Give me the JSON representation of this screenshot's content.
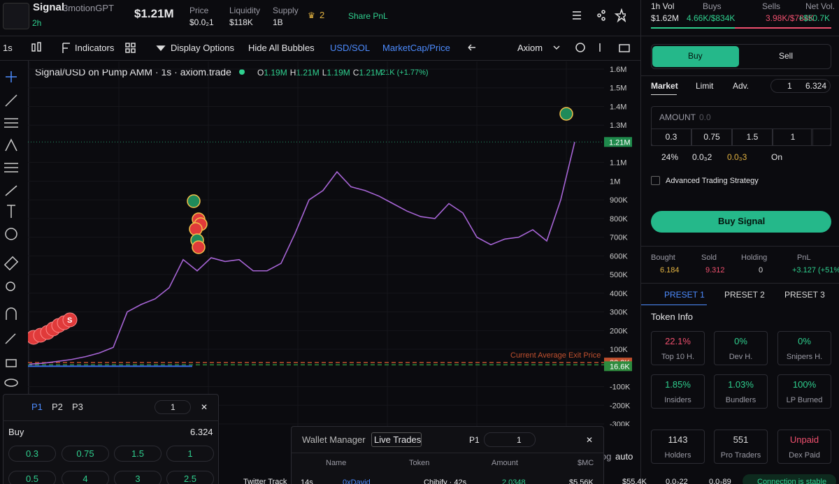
{
  "header": {
    "token_name": "Signal",
    "token_fullname": "3motionGPT",
    "age": "2h",
    "market_cap": "$1.21M",
    "stats": [
      {
        "label": "Price",
        "value": "$0.0₂1"
      },
      {
        "label": "Liquidity",
        "value": "$118K"
      },
      {
        "label": "Supply",
        "value": "1B"
      }
    ],
    "holders_badge": "2",
    "share": "Share PnL"
  },
  "volume": {
    "title": "1h Vol",
    "total": "$1.62M",
    "buys_label": "Buys",
    "buys": "4.66K/$834K",
    "sells_label": "Sells",
    "sells": "3.98K/$784K",
    "net_label": "Net Vol.",
    "net": "+$50.7K"
  },
  "toolbar": {
    "interval": "1s",
    "indicators": "Indicators",
    "display_options": "Display Options",
    "hide_bubbles": "Hide All Bubbles",
    "currency": "USD/SOL",
    "metric": "MarketCap/Price",
    "provider": "Axiom",
    "scale_log": "log",
    "scale_auto": "auto"
  },
  "chart": {
    "title": "Signal/USD on Pump AMM · 1s · axiom.trade",
    "ohlc": [
      {
        "key": "O",
        "value": "1.19M"
      },
      {
        "key": "H",
        "value": "1.21M"
      },
      {
        "key": "L",
        "value": "1.19M"
      },
      {
        "key": "C",
        "value": "1.21M"
      }
    ],
    "change": "21K (+1.77%)",
    "bubble_label": "S",
    "color": "#a765d6",
    "ylim": [
      -300000,
      1600000
    ],
    "yticks": [
      {
        "value": 1600000,
        "label": "1.6M"
      },
      {
        "value": 1500000,
        "label": "1.5M"
      },
      {
        "value": 1400000,
        "label": "1.4M"
      },
      {
        "value": 1300000,
        "label": "1.3M"
      },
      {
        "value": 1100000,
        "label": "1.1M"
      },
      {
        "value": 1000000,
        "label": "1M"
      },
      {
        "value": 900000,
        "label": "900K"
      },
      {
        "value": 800000,
        "label": "800K"
      },
      {
        "value": 700000,
        "label": "700K"
      },
      {
        "value": 600000,
        "label": "600K"
      },
      {
        "value": 500000,
        "label": "500K"
      },
      {
        "value": 400000,
        "label": "400K"
      },
      {
        "value": 300000,
        "label": "300K"
      },
      {
        "value": 200000,
        "label": "200K"
      },
      {
        "value": 100000,
        "label": "100K"
      },
      {
        "value": -100000,
        "label": "-100K"
      },
      {
        "value": -200000,
        "label": "-200K"
      },
      {
        "value": -300000,
        "label": "-300K"
      }
    ],
    "values": [
      20000,
      25000,
      35000,
      45000,
      60000,
      80000,
      110000,
      300000,
      340000,
      370000,
      430000,
      580000,
      520000,
      590000,
      570000,
      580000,
      520000,
      520000,
      560000,
      720000,
      900000,
      950000,
      1050000,
      970000,
      950000,
      920000,
      880000,
      840000,
      810000,
      800000,
      880000,
      830000,
      700000,
      660000,
      690000,
      700000,
      740000,
      680000,
      900000,
      1210000
    ],
    "current_price": {
      "value": 1210000,
      "label": "1.21M",
      "color": "#1f8a4c"
    },
    "price_lines": [
      {
        "value": 28800,
        "label": "28.8K",
        "color": "#c0502e"
      },
      {
        "value": 16600,
        "label": "16.6K",
        "color": "#2e8b3e"
      }
    ],
    "exit_price_label": "Current Average Exit Price"
  },
  "trade": {
    "buy": "Buy",
    "sell": "Sell",
    "order_types": [
      "Market",
      "Limit",
      "Adv."
    ],
    "wallet_count": "1",
    "balance": "6.324",
    "amount_label": "AMOUNT",
    "amount_placeholder": "0.0",
    "quick_amounts": [
      "0.3",
      "0.75",
      "1.5",
      "1"
    ],
    "slippage": "24%",
    "priority": "0.0₃2",
    "bribe": "0.0₃3",
    "mev": "On",
    "advanced": "Advanced Trading Strategy",
    "submit": "Buy Signal"
  },
  "position": [
    {
      "label": "Bought",
      "value": "6.184"
    },
    {
      "label": "Sold",
      "value": "9.312"
    },
    {
      "label": "Holding",
      "value": "0"
    },
    {
      "label": "PnL",
      "value": "+3.127 (+51%)"
    }
  ],
  "presets": [
    "PRESET 1",
    "PRESET 2",
    "PRESET 3"
  ],
  "token_info": {
    "title": "Token Info",
    "cards": [
      {
        "value": "22.1%",
        "label": "Top 10 H."
      },
      {
        "value": "0%",
        "label": "Dev H."
      },
      {
        "value": "0%",
        "label": "Snipers H."
      },
      {
        "value": "1.85%",
        "label": "Insiders"
      },
      {
        "value": "1.03%",
        "label": "Bundlers"
      },
      {
        "value": "100%",
        "label": "LP Burned"
      },
      {
        "value": "1143",
        "label": "Holders"
      },
      {
        "value": "551",
        "label": "Pro Traders"
      },
      {
        "value": "Unpaid",
        "label": "Dex Paid"
      }
    ]
  },
  "quick_panel": {
    "tabs": [
      "P1",
      "P2",
      "P3"
    ],
    "wallets": "1",
    "side": "Buy",
    "balance": "6.324",
    "amounts": [
      "0.3",
      "0.75",
      "1.5",
      "1",
      "0.5",
      "4",
      "3",
      "2.5"
    ]
  },
  "trades_panel": {
    "wallet_manager": "Wallet Manager",
    "live_trades": "Live Trades",
    "preset": "P1",
    "count": "1",
    "columns": [
      "Name",
      "Token",
      "Amount",
      "$MC"
    ],
    "rows": [
      {
        "age": "14s",
        "name": "0xDavid",
        "token": "Chibify · 42s",
        "amount": "2.0348",
        "mc": "$5.56K"
      }
    ]
  },
  "footer": {
    "twitter": "Twitter Track",
    "sol_price": "$55.4K",
    "fee1": "0.0₂22",
    "fee2": "0.0₂89",
    "status": "Connection is stable"
  }
}
